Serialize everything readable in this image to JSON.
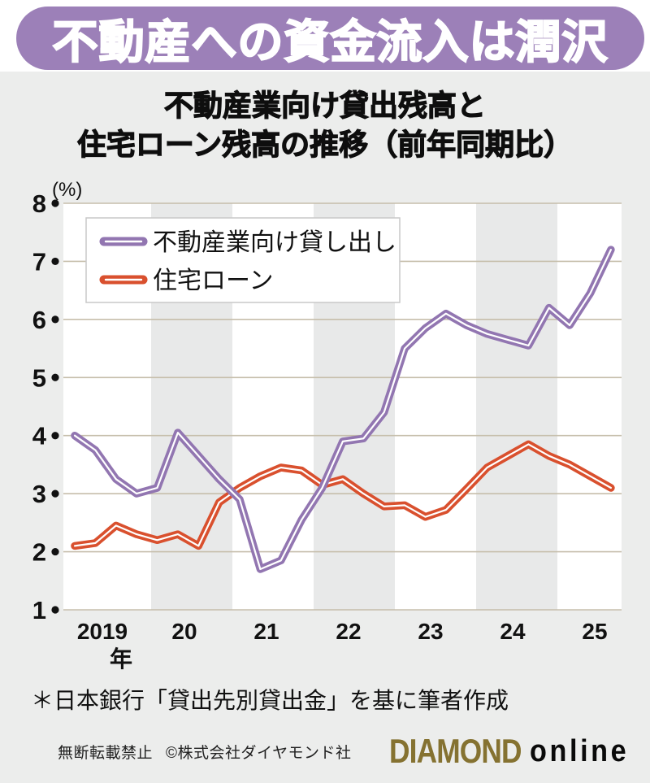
{
  "page": {
    "banner": "不動産への資金流入は潤沢",
    "title_line1": "不動産業向け貸出残高と",
    "title_line2": "住宅ローン残高の推移（前年同期比）",
    "footnote": "＊日本銀行「貸出先別貸出金」を基に筆者作成",
    "copyright_notice": "無断転載禁止",
    "copyright_company": "©株式会社ダイヤモンド社",
    "logo_primary": "DIAMOND",
    "logo_secondary": "online"
  },
  "colors": {
    "banner_bg": "#9c80b8",
    "series_real_estate": "#9276b1",
    "series_housing_loan": "#d9502e",
    "logo_gold": "#857231",
    "gridline": "#c6beab",
    "band": "#e8e9e9",
    "plot_bg": "#ffffff",
    "page_bg": "#ecedec",
    "text": "#111111"
  },
  "chart_data": {
    "type": "line",
    "title": "不動産業向け貸出残高と住宅ローン残高の推移（前年同期比）",
    "ylabel": "(%)",
    "x_axis_unit": "年",
    "x_tick_labels": [
      "2019",
      "20",
      "21",
      "22",
      "23",
      "24",
      "25"
    ],
    "x_frequency": "quarterly",
    "x_start": "2019Q1",
    "ylim": [
      1,
      8
    ],
    "yticks": [
      8,
      7,
      6,
      5,
      4,
      3,
      2,
      1
    ],
    "grid": "horizontal",
    "legend_position": "top-left",
    "shaded_years": [
      "20",
      "22",
      "24"
    ],
    "series": [
      {
        "name": "不動産業向け貸し出し",
        "color": "#9276b1",
        "values": [
          4.0,
          3.75,
          3.25,
          3.0,
          3.1,
          4.05,
          3.65,
          3.25,
          2.9,
          1.7,
          1.85,
          2.55,
          3.1,
          3.9,
          3.95,
          4.4,
          5.5,
          5.85,
          6.1,
          5.9,
          5.75,
          5.65,
          5.55,
          6.2,
          5.9,
          6.45,
          7.2
        ]
      },
      {
        "name": "住宅ローン",
        "color": "#d9502e",
        "values": [
          2.1,
          2.15,
          2.45,
          2.3,
          2.2,
          2.3,
          2.1,
          2.85,
          3.1,
          3.3,
          3.45,
          3.4,
          3.15,
          3.25,
          3.0,
          2.78,
          2.8,
          2.6,
          2.72,
          3.08,
          3.45,
          3.65,
          3.85,
          3.65,
          3.5,
          3.3,
          3.1
        ]
      }
    ]
  }
}
